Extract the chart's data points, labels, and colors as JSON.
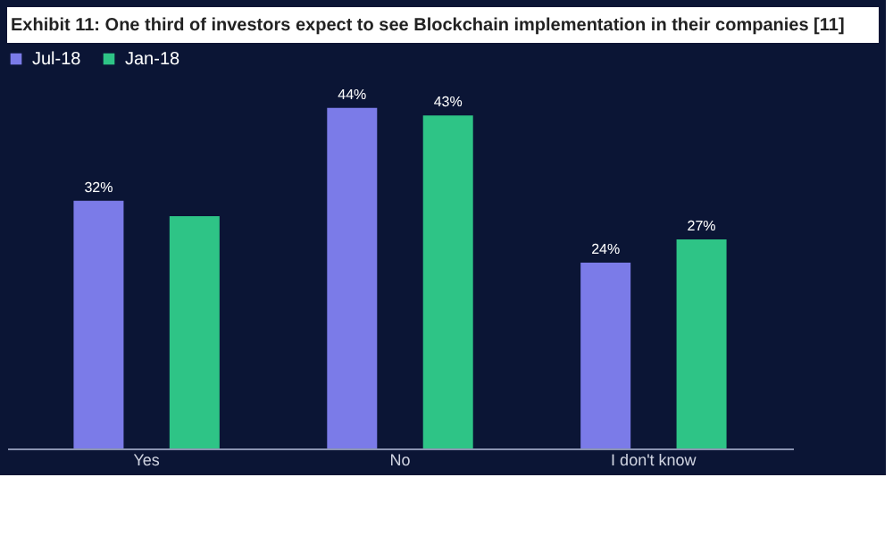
{
  "chart_data": {
    "type": "bar",
    "title": "Exhibit 11: One third of investors expect to see Blockchain implementation in their companies [11]",
    "categories": [
      "Yes",
      "No",
      "I don't know"
    ],
    "series": [
      {
        "name": "Jul-18",
        "color": "#7b7be8",
        "values": [
          32,
          44,
          24
        ],
        "value_labels": [
          "32%",
          "44%",
          "24%"
        ]
      },
      {
        "name": "Jan-18",
        "color": "#2ec486",
        "values": [
          30,
          43,
          27
        ],
        "value_labels": [
          null,
          "43%",
          "27%"
        ]
      }
    ],
    "tick_labels": "x",
    "legend": "top"
  }
}
